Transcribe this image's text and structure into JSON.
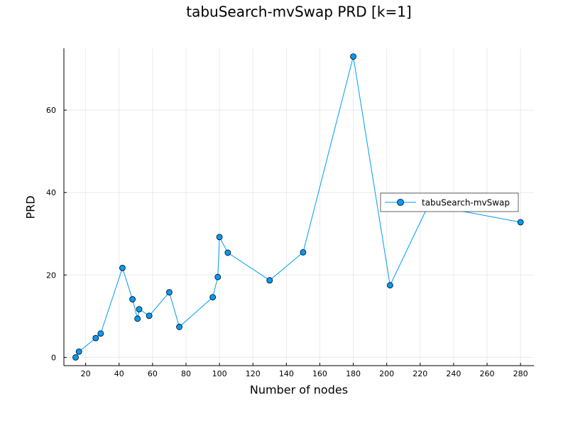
{
  "chart_data": {
    "type": "line",
    "title": "tabuSearch-mvSwap PRD [k=1]",
    "xlabel": "Number of nodes",
    "ylabel": "PRD",
    "xlim": [
      7,
      288
    ],
    "ylim": [
      -2,
      75
    ],
    "xticks": [
      20,
      40,
      60,
      80,
      100,
      120,
      140,
      160,
      180,
      200,
      220,
      240,
      260,
      280
    ],
    "yticks": [
      0,
      20,
      40,
      60
    ],
    "grid": true,
    "legend_position": "right",
    "series": [
      {
        "name": "tabuSearch-mvSwap",
        "color": "#009AF9",
        "marker": "circle",
        "points": [
          {
            "x": 14,
            "y": 0.0
          },
          {
            "x": 16,
            "y": 1.4
          },
          {
            "x": 26,
            "y": 4.7
          },
          {
            "x": 29,
            "y": 5.8
          },
          {
            "x": 42,
            "y": 21.7
          },
          {
            "x": 48,
            "y": 14.1
          },
          {
            "x": 51,
            "y": 9.4
          },
          {
            "x": 52,
            "y": 11.7
          },
          {
            "x": 58,
            "y": 10.1
          },
          {
            "x": 70,
            "y": 15.8
          },
          {
            "x": 76,
            "y": 7.4
          },
          {
            "x": 96,
            "y": 14.6
          },
          {
            "x": 99,
            "y": 19.5
          },
          {
            "x": 100,
            "y": 29.2
          },
          {
            "x": 105,
            "y": 25.4
          },
          {
            "x": 130,
            "y": 18.7
          },
          {
            "x": 150,
            "y": 25.5
          },
          {
            "x": 180,
            "y": 73.0
          },
          {
            "x": 202,
            "y": 17.5
          },
          {
            "x": 225,
            "y": 37.0
          },
          {
            "x": 280,
            "y": 32.8
          }
        ]
      }
    ]
  }
}
